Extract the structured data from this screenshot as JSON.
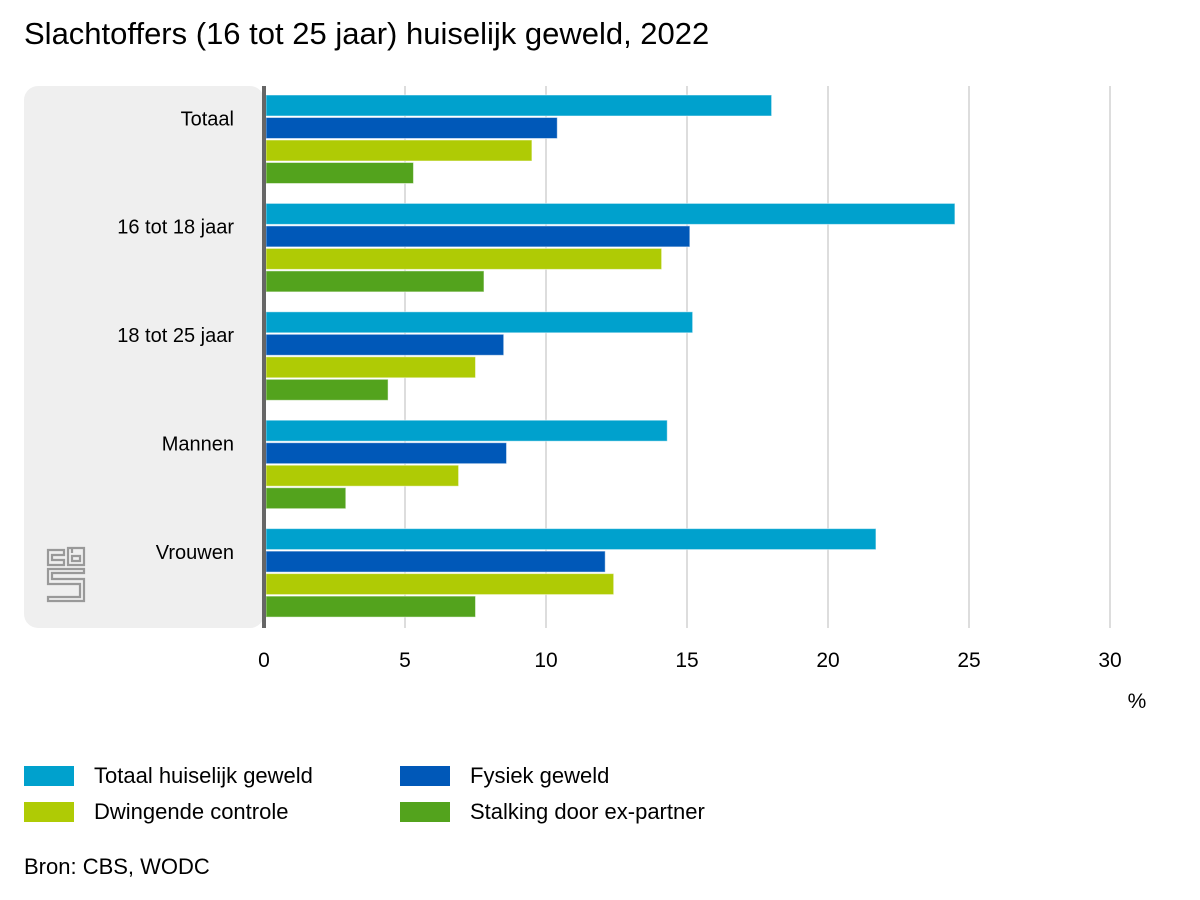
{
  "title": "Slachtoffers (16 tot 25 jaar) huiselijk geweld, 2022",
  "source": "Bron: CBS, WODC",
  "logo": "cbs-logo",
  "chart_data": {
    "type": "bar",
    "orientation": "horizontal",
    "title": "Slachtoffers (16 tot 25 jaar) huiselijk geweld, 2022",
    "xlabel": "%",
    "ylabel": "",
    "xlim": [
      0,
      30
    ],
    "xticks": [
      0,
      5,
      10,
      15,
      20,
      25,
      30
    ],
    "grid": true,
    "legend_position": "bottom",
    "categories": [
      "Totaal",
      "16 tot 18 jaar",
      "18 tot 25 jaar",
      "Mannen",
      "Vrouwen"
    ],
    "series": [
      {
        "name": "Totaal huiselijk geweld",
        "color": "#00a1cd",
        "values": [
          18.0,
          24.5,
          15.2,
          14.3,
          21.7
        ]
      },
      {
        "name": "Fysiek geweld",
        "color": "#0058b8",
        "values": [
          10.4,
          15.1,
          8.5,
          8.6,
          12.1
        ]
      },
      {
        "name": "Dwingende controle",
        "color": "#afcb05",
        "values": [
          9.5,
          14.1,
          7.5,
          6.9,
          12.4
        ]
      },
      {
        "name": "Stalking door ex-partner",
        "color": "#53a31d",
        "values": [
          5.3,
          7.8,
          4.4,
          2.9,
          7.5
        ]
      }
    ]
  }
}
